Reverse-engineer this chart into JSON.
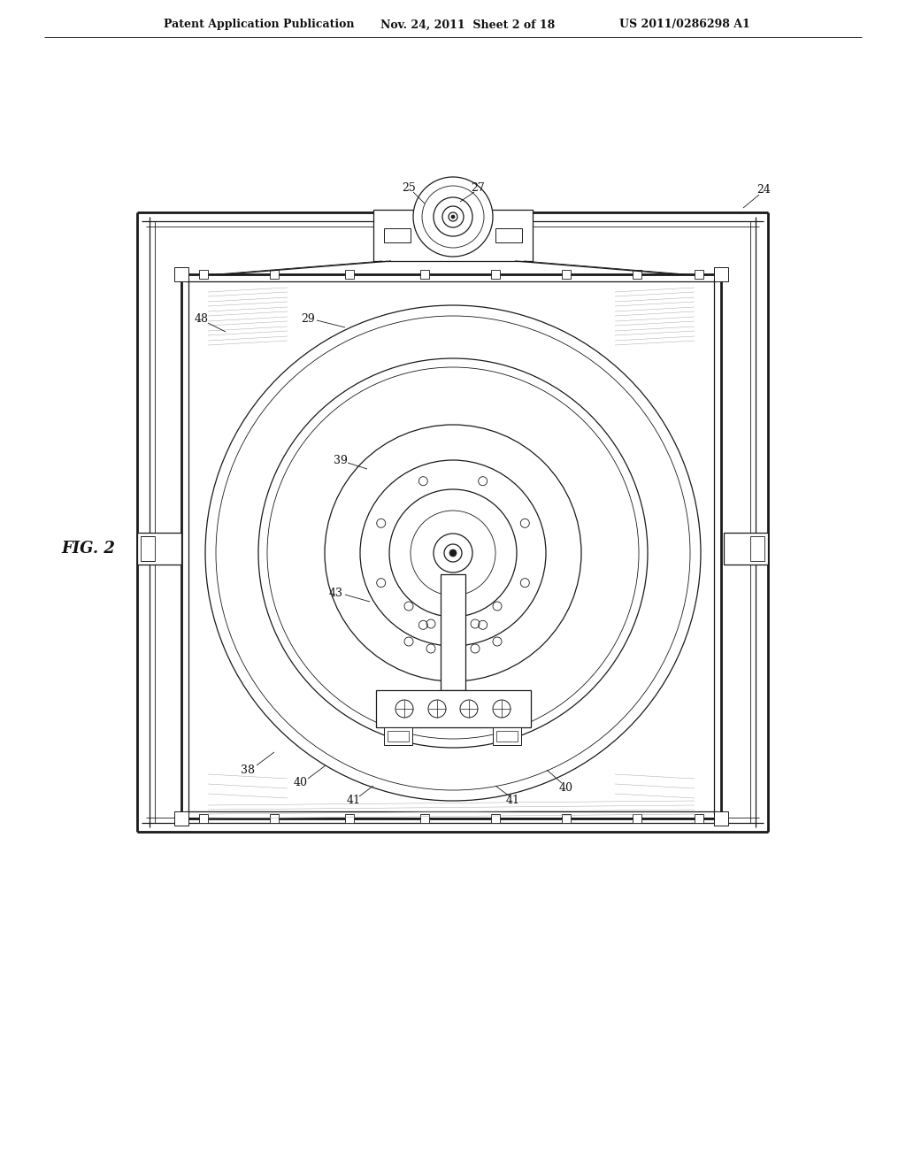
{
  "background_color": "#ffffff",
  "header_left": "Patent Application Publication",
  "header_mid": "Nov. 24, 2011  Sheet 2 of 18",
  "header_right": "US 2011/0286298 A1",
  "fig_label": "FIG. 2",
  "line_color": "#1a1a1a",
  "lw_main": 1.2,
  "lw_thin": 0.6,
  "lw_thick": 2.0,
  "lw_medium": 0.9
}
